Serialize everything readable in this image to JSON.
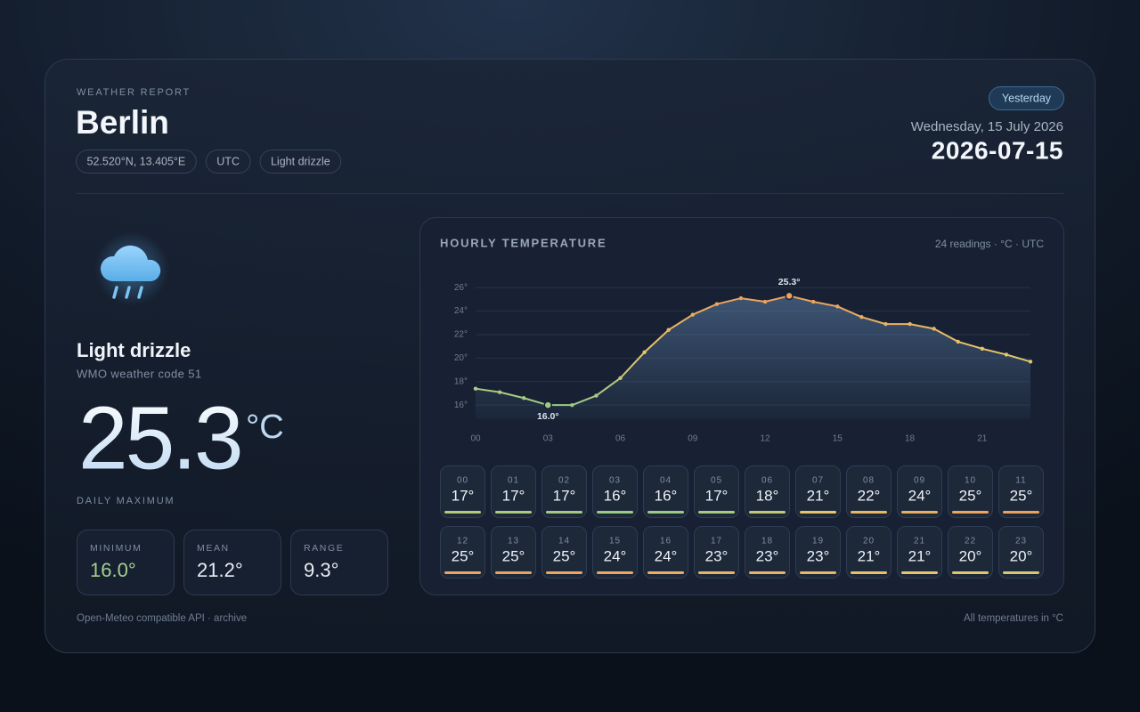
{
  "header": {
    "eyebrow": "WEATHER REPORT",
    "city": "Berlin",
    "chips": [
      "52.520°N, 13.405°E",
      "UTC",
      "Light drizzle"
    ],
    "badge": "Yesterday",
    "date_long": "Wednesday, 15 July 2026",
    "date_iso": "2026-07-15"
  },
  "current": {
    "condition": "Light drizzle",
    "code_text": "WMO weather code 51",
    "max_value": "25.3",
    "max_unit": "°C",
    "max_caption": "DAILY MAXIMUM"
  },
  "stats": [
    {
      "label": "MINIMUM",
      "value": "16.0°"
    },
    {
      "label": "MEAN",
      "value": "21.2°"
    },
    {
      "label": "RANGE",
      "value": "9.3°"
    }
  ],
  "footer": {
    "left": "Open-Meteo compatible API · archive",
    "right": "All temperatures in °C"
  },
  "chart_data": {
    "type": "line",
    "title": "HOURLY TEMPERATURE",
    "subtitle": "24 readings · °C · UTC",
    "categories": [
      "00",
      "01",
      "02",
      "03",
      "04",
      "05",
      "06",
      "07",
      "08",
      "09",
      "10",
      "11",
      "12",
      "13",
      "14",
      "15",
      "16",
      "17",
      "18",
      "19",
      "20",
      "21",
      "22",
      "23"
    ],
    "values": [
      17.4,
      17.1,
      16.6,
      16.0,
      16.0,
      16.8,
      18.3,
      20.5,
      22.4,
      23.7,
      24.6,
      25.1,
      24.8,
      25.3,
      24.8,
      24.4,
      23.5,
      22.9,
      22.9,
      22.5,
      21.4,
      20.8,
      20.3,
      19.7
    ],
    "value_labels": [
      "17°",
      "17°",
      "17°",
      "16°",
      "16°",
      "17°",
      "18°",
      "21°",
      "22°",
      "24°",
      "25°",
      "25°",
      "25°",
      "25°",
      "25°",
      "24°",
      "24°",
      "23°",
      "23°",
      "23°",
      "21°",
      "21°",
      "20°",
      "20°"
    ],
    "annotations": [
      {
        "x": "13",
        "label": "25.3°"
      },
      {
        "x": "03",
        "label": "16.0°"
      }
    ],
    "ylim": [
      14.8,
      27
    ],
    "yticks": [
      {
        "value": 16,
        "label": "16°"
      },
      {
        "value": 18,
        "label": "18°"
      },
      {
        "value": 20,
        "label": "20°"
      },
      {
        "value": 22,
        "label": "22°"
      },
      {
        "value": 24,
        "label": "24°"
      },
      {
        "value": 26,
        "label": "26°"
      }
    ],
    "x_label_every": 3,
    "grid": true,
    "colors": [
      "#9ccb86",
      "#e9c56a",
      "#eca05c"
    ],
    "area_color": "#5c7fa8"
  }
}
